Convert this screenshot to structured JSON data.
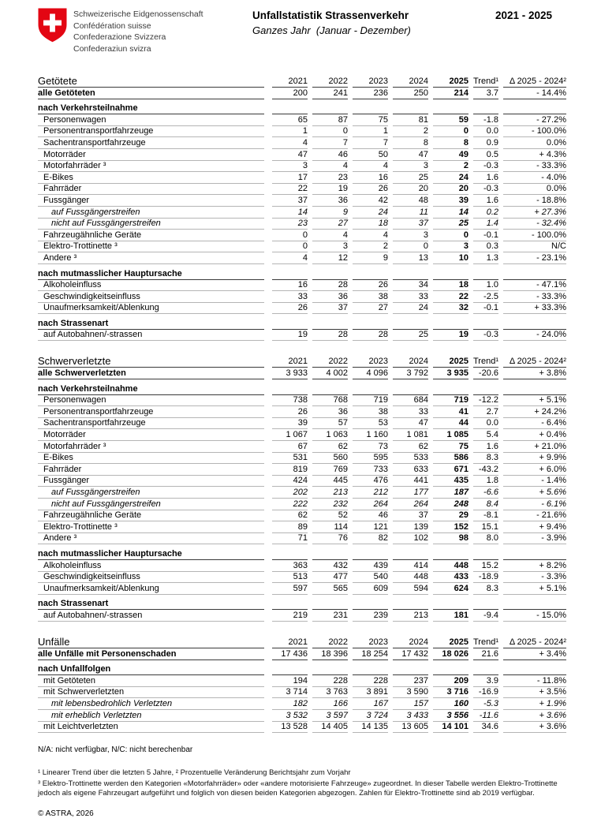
{
  "header": {
    "logo_lines": [
      "Schweizerische Eidgenossenschaft",
      "Confédération suisse",
      "Confederazione Svizzera",
      "Confederaziun svizra"
    ],
    "title": "Unfallstatistik Strassenverkehr",
    "subtitle": "Ganzes Jahr  (Januar - Dezember)",
    "period": "2021 - 2025"
  },
  "colors": {
    "swiss_red": "#e30613",
    "line_dark": "#3a3a3a",
    "line_light": "#b5b5b5",
    "text": "#000000"
  },
  "columns": [
    "2021",
    "2022",
    "2023",
    "2024",
    "2025",
    "Trend¹",
    "Δ 2025 - 2024²"
  ],
  "tables": [
    {
      "id": "getoetete",
      "title": "Getötete",
      "rows": [
        {
          "label": "alle Getöteten",
          "style": "total",
          "values": [
            "200",
            "241",
            "236",
            "250",
            "214",
            "3.7",
            "- 14.4%"
          ]
        },
        {
          "label": "nach Verkehrsteilnahme",
          "style": "section",
          "values": null
        },
        {
          "label": "Personenwagen",
          "style": "data",
          "values": [
            "65",
            "87",
            "75",
            "81",
            "59",
            "-1.8",
            "- 27.2%"
          ]
        },
        {
          "label": "Personentransportfahrzeuge",
          "style": "data",
          "values": [
            "1",
            "0",
            "1",
            "2",
            "0",
            "0.0",
            "- 100.0%"
          ]
        },
        {
          "label": "Sachentransportfahrzeuge",
          "style": "data",
          "values": [
            "4",
            "7",
            "7",
            "8",
            "8",
            "0.9",
            "0.0%"
          ]
        },
        {
          "label": "Motorräder",
          "style": "data",
          "values": [
            "47",
            "46",
            "50",
            "47",
            "49",
            "0.5",
            "+ 4.3%"
          ]
        },
        {
          "label": "Motorfahrräder ³",
          "style": "data",
          "values": [
            "3",
            "4",
            "4",
            "3",
            "2",
            "-0.3",
            "- 33.3%"
          ]
        },
        {
          "label": "E-Bikes",
          "style": "data",
          "values": [
            "17",
            "23",
            "16",
            "25",
            "24",
            "1.6",
            "- 4.0%"
          ]
        },
        {
          "label": "Fahrräder",
          "style": "data",
          "values": [
            "22",
            "19",
            "26",
            "20",
            "20",
            "-0.3",
            "0.0%"
          ]
        },
        {
          "label": "Fussgänger",
          "style": "data",
          "values": [
            "37",
            "36",
            "42",
            "48",
            "39",
            "1.6",
            "- 18.8%"
          ]
        },
        {
          "label": "auf Fussgängerstreifen",
          "style": "italic",
          "values": [
            "14",
            "9",
            "24",
            "11",
            "14",
            "0.2",
            "+ 27.3%"
          ]
        },
        {
          "label": "nicht auf Fussgängerstreifen",
          "style": "italic",
          "values": [
            "23",
            "27",
            "18",
            "37",
            "25",
            "1.4",
            "- 32.4%"
          ]
        },
        {
          "label": "Fahrzeugähnliche Geräte",
          "style": "data",
          "values": [
            "0",
            "4",
            "4",
            "3",
            "0",
            "-0.1",
            "- 100.0%"
          ]
        },
        {
          "label": "Elektro-Trottinette ³",
          "style": "data",
          "values": [
            "0",
            "3",
            "2",
            "0",
            "3",
            "0.3",
            "N/C"
          ]
        },
        {
          "label": "Andere ³",
          "style": "data",
          "values": [
            "4",
            "12",
            "9",
            "13",
            "10",
            "1.3",
            "- 23.1%"
          ]
        },
        {
          "label": "nach mutmasslicher Hauptursache",
          "style": "section",
          "values": null
        },
        {
          "label": "Alkoholeinfluss",
          "style": "data",
          "values": [
            "16",
            "28",
            "26",
            "34",
            "18",
            "1.0",
            "- 47.1%"
          ]
        },
        {
          "label": "Geschwindigkeitseinfluss",
          "style": "data",
          "values": [
            "33",
            "36",
            "38",
            "33",
            "22",
            "-2.5",
            "- 33.3%"
          ]
        },
        {
          "label": "Unaufmerksamkeit/Ablenkung",
          "style": "data",
          "values": [
            "26",
            "37",
            "27",
            "24",
            "32",
            "-0.1",
            "+ 33.3%"
          ]
        },
        {
          "label": "nach Strassenart",
          "style": "section",
          "values": null
        },
        {
          "label": "auf Autobahnen/-strassen",
          "style": "data",
          "values": [
            "19",
            "28",
            "28",
            "25",
            "19",
            "-0.3",
            "- 24.0%"
          ]
        }
      ]
    },
    {
      "id": "schwerverletzte",
      "title": "Schwerverletzte",
      "rows": [
        {
          "label": "alle Schwerverletzten",
          "style": "total",
          "values": [
            "3 933",
            "4 002",
            "4 096",
            "3 792",
            "3 935",
            "-20.6",
            "+ 3.8%"
          ]
        },
        {
          "label": "nach Verkehrsteilnahme",
          "style": "section",
          "values": null
        },
        {
          "label": "Personenwagen",
          "style": "data",
          "values": [
            "738",
            "768",
            "719",
            "684",
            "719",
            "-12.2",
            "+ 5.1%"
          ]
        },
        {
          "label": "Personentransportfahrzeuge",
          "style": "data",
          "values": [
            "26",
            "36",
            "38",
            "33",
            "41",
            "2.7",
            "+ 24.2%"
          ]
        },
        {
          "label": "Sachentransportfahrzeuge",
          "style": "data",
          "values": [
            "39",
            "57",
            "53",
            "47",
            "44",
            "0.0",
            "- 6.4%"
          ]
        },
        {
          "label": "Motorräder",
          "style": "data",
          "values": [
            "1 067",
            "1 063",
            "1 160",
            "1 081",
            "1 085",
            "5.4",
            "+ 0.4%"
          ]
        },
        {
          "label": "Motorfahrräder ³",
          "style": "data",
          "values": [
            "67",
            "62",
            "73",
            "62",
            "75",
            "1.6",
            "+ 21.0%"
          ]
        },
        {
          "label": "E-Bikes",
          "style": "data",
          "values": [
            "531",
            "560",
            "595",
            "533",
            "586",
            "8.3",
            "+ 9.9%"
          ]
        },
        {
          "label": "Fahrräder",
          "style": "data",
          "values": [
            "819",
            "769",
            "733",
            "633",
            "671",
            "-43.2",
            "+ 6.0%"
          ]
        },
        {
          "label": "Fussgänger",
          "style": "data",
          "values": [
            "424",
            "445",
            "476",
            "441",
            "435",
            "1.8",
            "- 1.4%"
          ]
        },
        {
          "label": "auf Fussgängerstreifen",
          "style": "italic",
          "values": [
            "202",
            "213",
            "212",
            "177",
            "187",
            "-6.6",
            "+ 5.6%"
          ]
        },
        {
          "label": "nicht auf Fussgängerstreifen",
          "style": "italic",
          "values": [
            "222",
            "232",
            "264",
            "264",
            "248",
            "8.4",
            "- 6.1%"
          ]
        },
        {
          "label": "Fahrzeugähnliche Geräte",
          "style": "data",
          "values": [
            "62",
            "52",
            "46",
            "37",
            "29",
            "-8.1",
            "- 21.6%"
          ]
        },
        {
          "label": "Elektro-Trottinette ³",
          "style": "data",
          "values": [
            "89",
            "114",
            "121",
            "139",
            "152",
            "15.1",
            "+ 9.4%"
          ]
        },
        {
          "label": "Andere ³",
          "style": "data",
          "values": [
            "71",
            "76",
            "82",
            "102",
            "98",
            "8.0",
            "- 3.9%"
          ]
        },
        {
          "label": "nach mutmasslicher Hauptursache",
          "style": "section",
          "values": null
        },
        {
          "label": "Alkoholeinfluss",
          "style": "data",
          "values": [
            "363",
            "432",
            "439",
            "414",
            "448",
            "15.2",
            "+ 8.2%"
          ]
        },
        {
          "label": "Geschwindigkeitseinfluss",
          "style": "data",
          "values": [
            "513",
            "477",
            "540",
            "448",
            "433",
            "-18.9",
            "- 3.3%"
          ]
        },
        {
          "label": "Unaufmerksamkeit/Ablenkung",
          "style": "data",
          "values": [
            "597",
            "565",
            "609",
            "594",
            "624",
            "8.3",
            "+ 5.1%"
          ]
        },
        {
          "label": "nach Strassenart",
          "style": "section",
          "values": null
        },
        {
          "label": "auf Autobahnen/-strassen",
          "style": "data",
          "values": [
            "219",
            "231",
            "239",
            "213",
            "181",
            "-9.4",
            "- 15.0%"
          ]
        }
      ]
    },
    {
      "id": "unfaelle",
      "title": "Unfälle",
      "rows": [
        {
          "label": "alle Unfälle mit Personenschaden",
          "style": "total",
          "values": [
            "17 436",
            "18 396",
            "18 254",
            "17 432",
            "18 026",
            "21.6",
            "+ 3.4%"
          ]
        },
        {
          "label": "nach Unfallfolgen",
          "style": "section",
          "values": null
        },
        {
          "label": "mit Getöteten",
          "style": "data",
          "values": [
            "194",
            "228",
            "228",
            "237",
            "209",
            "3.9",
            "- 11.8%"
          ]
        },
        {
          "label": "mit Schwerverletzten",
          "style": "data",
          "values": [
            "3 714",
            "3 763",
            "3 891",
            "3 590",
            "3 716",
            "-16.9",
            "+ 3.5%"
          ]
        },
        {
          "label": "mit lebensbedrohlich Verletzten",
          "style": "italic",
          "values": [
            "182",
            "166",
            "167",
            "157",
            "160",
            "-5.3",
            "+ 1.9%"
          ]
        },
        {
          "label": "mit erheblich Verletzten",
          "style": "italic",
          "values": [
            "3 532",
            "3 597",
            "3 724",
            "3 433",
            "3 556",
            "-11.6",
            "+ 3.6%"
          ]
        },
        {
          "label": "mit Leichtverletzten",
          "style": "data",
          "values": [
            "13 528",
            "14 405",
            "14 135",
            "13 605",
            "14 101",
            "34.6",
            "+ 3.6%"
          ]
        }
      ]
    }
  ],
  "notes": {
    "na": "N/A: nicht verfügbar, N/C: nicht berechenbar",
    "footnote1": "¹ Linearer Trend über die letzten 5 Jahre, ² Prozentuelle Veränderung Berichtsjahr zum Vorjahr",
    "footnote2": "³ Elektro-Trottinette werden den Kategorien «Motorfahrräder» oder «andere motorisierte Fahrzeuge» zugeordnet. In dieser Tabelle werden Elektro-Trottinette jedoch als eigene Fahrzeugart aufgeführt und folglich von diesen beiden Kategorien abgezogen. Zahlen für Elektro-Trottinette sind ab 2019 verfügbar.",
    "copyright": "© ASTRA, 2026"
  }
}
